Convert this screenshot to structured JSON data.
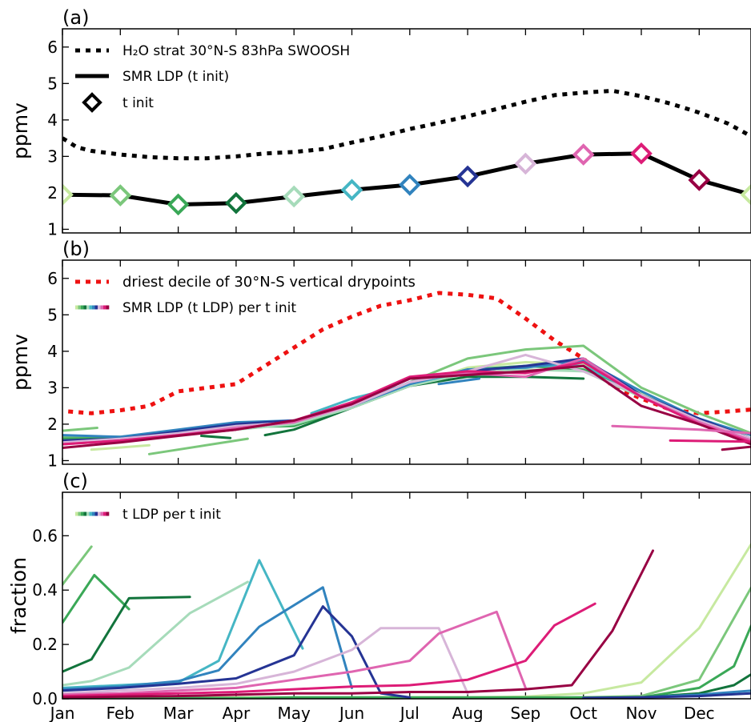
{
  "months": [
    "Jan",
    "Feb",
    "Mar",
    "Apr",
    "May",
    "Jun",
    "Jul",
    "Aug",
    "Sep",
    "Oct",
    "Nov",
    "Dec"
  ],
  "season_colors": [
    "#c7e9a0",
    "#7bc77b",
    "#3aa857",
    "#12743c",
    "#a6dbba",
    "#45b6c4",
    "#3183be",
    "#253494",
    "#d7b5d8",
    "#df65b0",
    "#dd1c77",
    "#980043"
  ],
  "chart_data": [
    {
      "type": "line",
      "panel_label": "(a)",
      "title": "",
      "xlabel": "",
      "ylabel": "ppmv",
      "xlim": [
        0,
        11.9
      ],
      "ylim": [
        0.9,
        6.5
      ],
      "yticks": [
        1,
        2,
        3,
        4,
        5,
        6
      ],
      "legend_position": "upper-left",
      "legend": [
        {
          "text": "H₂O strat 30°N-S 83hPa SWOOSH",
          "style": "dotted-black"
        },
        {
          "text": "SMR LDP (t init)",
          "style": "solid-black"
        },
        {
          "text": "t init",
          "style": "diamond-outline"
        }
      ],
      "series": [
        {
          "name": "H₂O strat 30°N-S 83hPa SWOOSH",
          "style": "dotted",
          "color": "#000000",
          "x": [
            0,
            0.25,
            0.5,
            1,
            1.5,
            2,
            2.5,
            3,
            3.5,
            4,
            4.5,
            5,
            5.5,
            6,
            6.5,
            7,
            7.5,
            8,
            8.5,
            9,
            9.5,
            10,
            10.5,
            11,
            11.5,
            11.9
          ],
          "y": [
            3.5,
            3.25,
            3.15,
            3.05,
            2.98,
            2.95,
            2.95,
            3.0,
            3.08,
            3.12,
            3.2,
            3.38,
            3.55,
            3.75,
            3.92,
            4.1,
            4.3,
            4.5,
            4.68,
            4.75,
            4.8,
            4.65,
            4.45,
            4.2,
            3.9,
            3.55
          ]
        },
        {
          "name": "SMR LDP (t init)",
          "style": "solid",
          "color": "#000000",
          "x": [
            0,
            1,
            2,
            3,
            4,
            5,
            6,
            7,
            8,
            9,
            10,
            11,
            11.9
          ],
          "y": [
            1.95,
            1.93,
            1.68,
            1.72,
            1.9,
            2.08,
            2.22,
            2.45,
            2.8,
            3.05,
            3.08,
            2.35,
            1.95
          ]
        }
      ],
      "markers": {
        "x": [
          0,
          1,
          2,
          3,
          4,
          5,
          6,
          7,
          8,
          9,
          10,
          11,
          11.9
        ],
        "y": [
          1.95,
          1.93,
          1.68,
          1.72,
          1.9,
          2.08,
          2.22,
          2.45,
          2.8,
          3.05,
          3.08,
          2.35,
          1.95
        ],
        "color_index": [
          0,
          1,
          2,
          3,
          4,
          5,
          6,
          7,
          8,
          9,
          10,
          11,
          0
        ]
      }
    },
    {
      "type": "line",
      "panel_label": "(b)",
      "title": "",
      "xlabel": "",
      "ylabel": "ppmv",
      "xlim": [
        0,
        11.9
      ],
      "ylim": [
        0.9,
        6.5
      ],
      "yticks": [
        1,
        2,
        3,
        4,
        5,
        6
      ],
      "legend_position": "upper-left",
      "legend": [
        {
          "text": "driest decile of 30°N-S vertical drypoints",
          "style": "dotted-red"
        },
        {
          "text": "SMR LDP (t LDP) per t init",
          "style": "multicolor-solid"
        }
      ],
      "series": [
        {
          "name": "driest decile of 30°N-S vertical drypoints",
          "style": "dotted",
          "color": "#ee1111",
          "x": [
            0.1,
            0.5,
            1,
            1.5,
            2,
            2.5,
            3,
            3.5,
            4,
            4.5,
            5,
            5.5,
            6,
            6.5,
            7,
            7.5,
            8,
            8.5,
            9,
            9.5,
            10,
            10.5,
            11,
            11.5,
            11.9
          ],
          "y": [
            2.35,
            2.3,
            2.38,
            2.5,
            2.9,
            3.0,
            3.1,
            3.6,
            4.1,
            4.6,
            4.95,
            5.25,
            5.4,
            5.6,
            5.55,
            5.45,
            4.9,
            4.3,
            3.8,
            3.05,
            2.7,
            2.4,
            2.3,
            2.35,
            2.4
          ]
        },
        {
          "color_index": 0,
          "x": [
            0,
            1,
            2,
            3,
            4,
            5,
            6,
            7,
            8,
            9,
            10,
            11,
            11.9
          ],
          "y": [
            1.55,
            1.6,
            1.75,
            1.9,
            2.0,
            2.45,
            3.05,
            3.55,
            3.7,
            3.65,
            2.85,
            2.1,
            1.55
          ]
        },
        {
          "color_index": 1,
          "x": [
            0,
            1,
            2,
            3,
            4,
            5,
            6,
            7,
            8,
            9,
            10,
            11,
            11.9
          ],
          "y": [
            1.65,
            1.65,
            1.8,
            1.95,
            2.1,
            2.5,
            3.15,
            3.8,
            4.05,
            4.15,
            3.0,
            2.3,
            1.75
          ]
        },
        {
          "color_index": 2,
          "x": [
            0,
            1,
            2,
            3,
            4,
            5,
            6,
            7,
            8,
            9,
            10,
            11,
            11.9
          ],
          "y": [
            1.6,
            1.62,
            1.78,
            1.92,
            1.95,
            2.45,
            3.1,
            3.5,
            3.6,
            3.5,
            2.8,
            2.1,
            1.7
          ]
        },
        {
          "color_index": 3,
          "x": [
            3.5,
            4,
            5,
            6,
            7,
            8,
            9
          ],
          "y": [
            1.7,
            1.85,
            2.45,
            3.05,
            3.3,
            3.3,
            3.25
          ]
        },
        {
          "color_index": 4,
          "x": [
            0,
            1,
            2,
            3,
            4,
            5,
            6,
            7,
            8,
            9,
            10,
            11,
            11.9
          ],
          "y": [
            1.5,
            1.55,
            1.7,
            1.85,
            2.0,
            2.45,
            3.05,
            3.4,
            3.5,
            3.45,
            2.75,
            2.05,
            1.55
          ]
        },
        {
          "color_index": 5,
          "x": [
            4.3,
            5,
            6,
            7,
            8,
            9,
            10,
            11,
            11.9
          ],
          "y": [
            2.3,
            2.7,
            3.1,
            3.45,
            3.6,
            3.6,
            2.8,
            2.1,
            1.6
          ]
        },
        {
          "color_index": 6,
          "x": [
            0,
            1,
            2,
            3,
            4,
            5,
            6,
            7,
            8,
            9,
            10,
            11,
            11.9
          ],
          "y": [
            1.7,
            1.65,
            1.85,
            2.05,
            2.1,
            2.5,
            3.1,
            3.5,
            3.55,
            3.75,
            2.9,
            2.15,
            1.7
          ]
        },
        {
          "color_index": 7,
          "x": [
            0,
            1,
            2,
            3,
            4,
            5,
            6,
            7,
            8,
            9,
            10,
            11,
            11.9
          ],
          "y": [
            1.55,
            1.6,
            1.8,
            2.0,
            2.1,
            2.5,
            3.15,
            3.45,
            3.6,
            3.8,
            2.8,
            2.15,
            1.6
          ]
        },
        {
          "color_index": 8,
          "x": [
            0,
            1,
            2,
            3,
            4,
            5,
            6,
            7,
            8,
            9,
            10,
            11,
            11.9
          ],
          "y": [
            1.5,
            1.6,
            1.75,
            1.95,
            2.05,
            2.5,
            3.15,
            3.45,
            3.9,
            3.45,
            2.8,
            2.1,
            1.6
          ]
        },
        {
          "color_index": 9,
          "x": [
            0,
            1,
            2,
            3,
            4,
            5,
            6,
            7,
            8,
            9,
            10,
            11,
            11.9
          ],
          "y": [
            1.45,
            1.55,
            1.7,
            1.9,
            2.05,
            2.55,
            3.25,
            3.4,
            3.3,
            3.8,
            2.75,
            2.05,
            1.55
          ]
        },
        {
          "color_index": 10,
          "x": [
            0,
            1,
            2,
            3,
            4,
            5,
            6,
            7,
            8,
            9,
            10,
            11,
            11.9
          ],
          "y": [
            1.45,
            1.55,
            1.7,
            1.85,
            2.1,
            2.6,
            3.3,
            3.45,
            3.4,
            3.7,
            2.75,
            2.0,
            1.5
          ]
        },
        {
          "color_index": 11,
          "x": [
            0,
            1,
            2,
            3,
            4,
            5,
            6,
            7,
            8,
            9,
            10,
            11,
            11.9
          ],
          "y": [
            1.35,
            1.5,
            1.68,
            1.85,
            2.1,
            2.55,
            3.25,
            3.35,
            3.45,
            3.6,
            2.5,
            2.0,
            1.45
          ]
        },
        {
          "color_index": 9,
          "x": [
            9.5,
            11,
            11.9
          ],
          "y": [
            1.95,
            1.85,
            1.75
          ]
        },
        {
          "color_index": 10,
          "x": [
            10.5,
            11.9
          ],
          "y": [
            1.55,
            1.52
          ]
        },
        {
          "color_index": 11,
          "x": [
            11.4,
            11.9
          ],
          "y": [
            1.3,
            1.38
          ]
        },
        {
          "color_index": 0,
          "x": [
            0.5,
            1.5
          ],
          "y": [
            1.3,
            1.42
          ]
        },
        {
          "color_index": 1,
          "x": [
            0,
            0.6
          ],
          "y": [
            1.82,
            1.9
          ]
        },
        {
          "color_index": 1,
          "x": [
            1.5,
            3.2
          ],
          "y": [
            1.18,
            1.6
          ]
        },
        {
          "color_index": 3,
          "x": [
            2.4,
            2.9
          ],
          "y": [
            1.68,
            1.62
          ]
        },
        {
          "color_index": 6,
          "x": [
            6.5,
            7.2
          ],
          "y": [
            3.1,
            3.25
          ]
        }
      ]
    },
    {
      "type": "line",
      "panel_label": "(c)",
      "title": "",
      "xlabel": "",
      "ylabel": "fraction",
      "xlim": [
        0,
        11.9
      ],
      "ylim": [
        0.0,
        0.76
      ],
      "yticks": [
        0.0,
        0.2,
        0.4,
        0.6
      ],
      "ytick_labels": [
        "0.0",
        "0.2",
        "0.4",
        "0.6"
      ],
      "xtick_labels": [
        "Jan",
        "Feb",
        "Mar",
        "Apr",
        "May",
        "Jun",
        "Jul",
        "Aug",
        "Sep",
        "Oct",
        "Nov",
        "Dec"
      ],
      "legend_position": "upper-left",
      "legend": [
        {
          "text": "t LDP per t init",
          "style": "multicolor-solid"
        }
      ],
      "series": [
        {
          "color_index": 0,
          "x": [
            0,
            1,
            2,
            3,
            4,
            5,
            6,
            7,
            8,
            9,
            10,
            11,
            11.9
          ],
          "y": [
            0.005,
            0.005,
            0.005,
            0.005,
            0.005,
            0.005,
            0.005,
            0.005,
            0.008,
            0.02,
            0.06,
            0.26,
            0.57
          ]
        },
        {
          "color_index": 1,
          "x": [
            0,
            0.5
          ],
          "y": [
            0.42,
            0.56
          ]
        },
        {
          "color_index": 1,
          "x": [
            0,
            1,
            2,
            3,
            4,
            5,
            6,
            7,
            8,
            9,
            10,
            11,
            11.9
          ],
          "y": [
            0.003,
            0.003,
            0.003,
            0.003,
            0.003,
            0.003,
            0.003,
            0.003,
            0.003,
            0.005,
            0.01,
            0.07,
            0.41
          ]
        },
        {
          "color_index": 2,
          "x": [
            0,
            0.55,
            1.15
          ],
          "y": [
            0.28,
            0.455,
            0.33
          ]
        },
        {
          "color_index": 2,
          "x": [
            0,
            1,
            2,
            3,
            4,
            5,
            6,
            7,
            8,
            9,
            10,
            11,
            11.6,
            11.9
          ],
          "y": [
            0.002,
            0.002,
            0.002,
            0.002,
            0.005,
            0.005,
            0.005,
            0.005,
            0.005,
            0.005,
            0.005,
            0.04,
            0.12,
            0.27
          ]
        },
        {
          "color_index": 3,
          "x": [
            0,
            0.5,
            1.15,
            2.2
          ],
          "y": [
            0.1,
            0.145,
            0.37,
            0.375
          ]
        },
        {
          "color_index": 3,
          "x": [
            10,
            11,
            11.6,
            11.9
          ],
          "y": [
            0.005,
            0.02,
            0.05,
            0.09
          ]
        },
        {
          "color_index": 4,
          "x": [
            0,
            0.5,
            1.15,
            2.2,
            3.2
          ],
          "y": [
            0.05,
            0.065,
            0.115,
            0.315,
            0.43
          ]
        },
        {
          "color_index": 5,
          "x": [
            0,
            1,
            2,
            2.7,
            3.4,
            4.15
          ],
          "y": [
            0.04,
            0.05,
            0.06,
            0.14,
            0.51,
            0.185
          ]
        },
        {
          "color_index": 6,
          "x": [
            0,
            1,
            2,
            2.7,
            3.4,
            4.5,
            5.0
          ],
          "y": [
            0.035,
            0.045,
            0.065,
            0.105,
            0.265,
            0.41,
            0.04
          ]
        },
        {
          "color_index": 7,
          "x": [
            0,
            1,
            2,
            3,
            4,
            4.5,
            5.0,
            5.5,
            6.0
          ],
          "y": [
            0.03,
            0.04,
            0.055,
            0.075,
            0.16,
            0.34,
            0.23,
            0.02,
            0.005
          ]
        },
        {
          "color_index": 8,
          "x": [
            0,
            1,
            2,
            3,
            4,
            5,
            5.5,
            6.5,
            7.0
          ],
          "y": [
            0.02,
            0.03,
            0.04,
            0.055,
            0.1,
            0.18,
            0.26,
            0.26,
            0.02
          ]
        },
        {
          "color_index": 9,
          "x": [
            0,
            1,
            2,
            3,
            4,
            5,
            6,
            6.5,
            7.5,
            8.0
          ],
          "y": [
            0.015,
            0.02,
            0.03,
            0.04,
            0.07,
            0.1,
            0.14,
            0.24,
            0.32,
            0.04
          ]
        },
        {
          "color_index": 10,
          "x": [
            0,
            1,
            2,
            3,
            4,
            5,
            6,
            7,
            8,
            8.5,
            9.2
          ],
          "y": [
            0.01,
            0.015,
            0.02,
            0.025,
            0.035,
            0.045,
            0.05,
            0.07,
            0.14,
            0.27,
            0.35
          ]
        },
        {
          "color_index": 11,
          "x": [
            0,
            1,
            2,
            3,
            4,
            5,
            6,
            7,
            8,
            8.8,
            9.5,
            10.2
          ],
          "y": [
            0.005,
            0.008,
            0.01,
            0.015,
            0.02,
            0.02,
            0.025,
            0.025,
            0.035,
            0.05,
            0.25,
            0.545
          ]
        },
        {
          "color_index": 6,
          "x": [
            9,
            10,
            11,
            11.9
          ],
          "y": [
            0.003,
            0.005,
            0.015,
            0.03
          ]
        },
        {
          "color_index": 7,
          "x": [
            9,
            10,
            11,
            11.9
          ],
          "y": [
            0.003,
            0.005,
            0.01,
            0.02
          ]
        }
      ]
    }
  ]
}
